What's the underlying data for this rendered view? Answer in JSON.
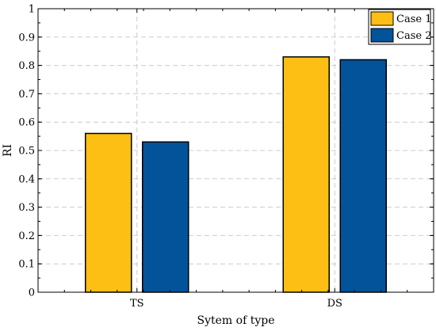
{
  "chart_data": {
    "type": "bar",
    "categories": [
      "TS",
      "DS"
    ],
    "series": [
      {
        "name": "Case 1",
        "values": [
          0.56,
          0.83
        ],
        "color": "#FDBF13"
      },
      {
        "name": "Case 2",
        "values": [
          0.53,
          0.82
        ],
        "color": "#02539A"
      }
    ],
    "xlabel": "Sytem of type",
    "ylabel": "RI",
    "ylim": [
      0,
      1
    ],
    "yticks": [
      "0",
      "0.1",
      "0.2",
      "0.3",
      "0.4",
      "0.5",
      "0.6",
      "0.7",
      "0.8",
      "0.9",
      "1"
    ],
    "grid": true,
    "legend_position": "top-right"
  }
}
